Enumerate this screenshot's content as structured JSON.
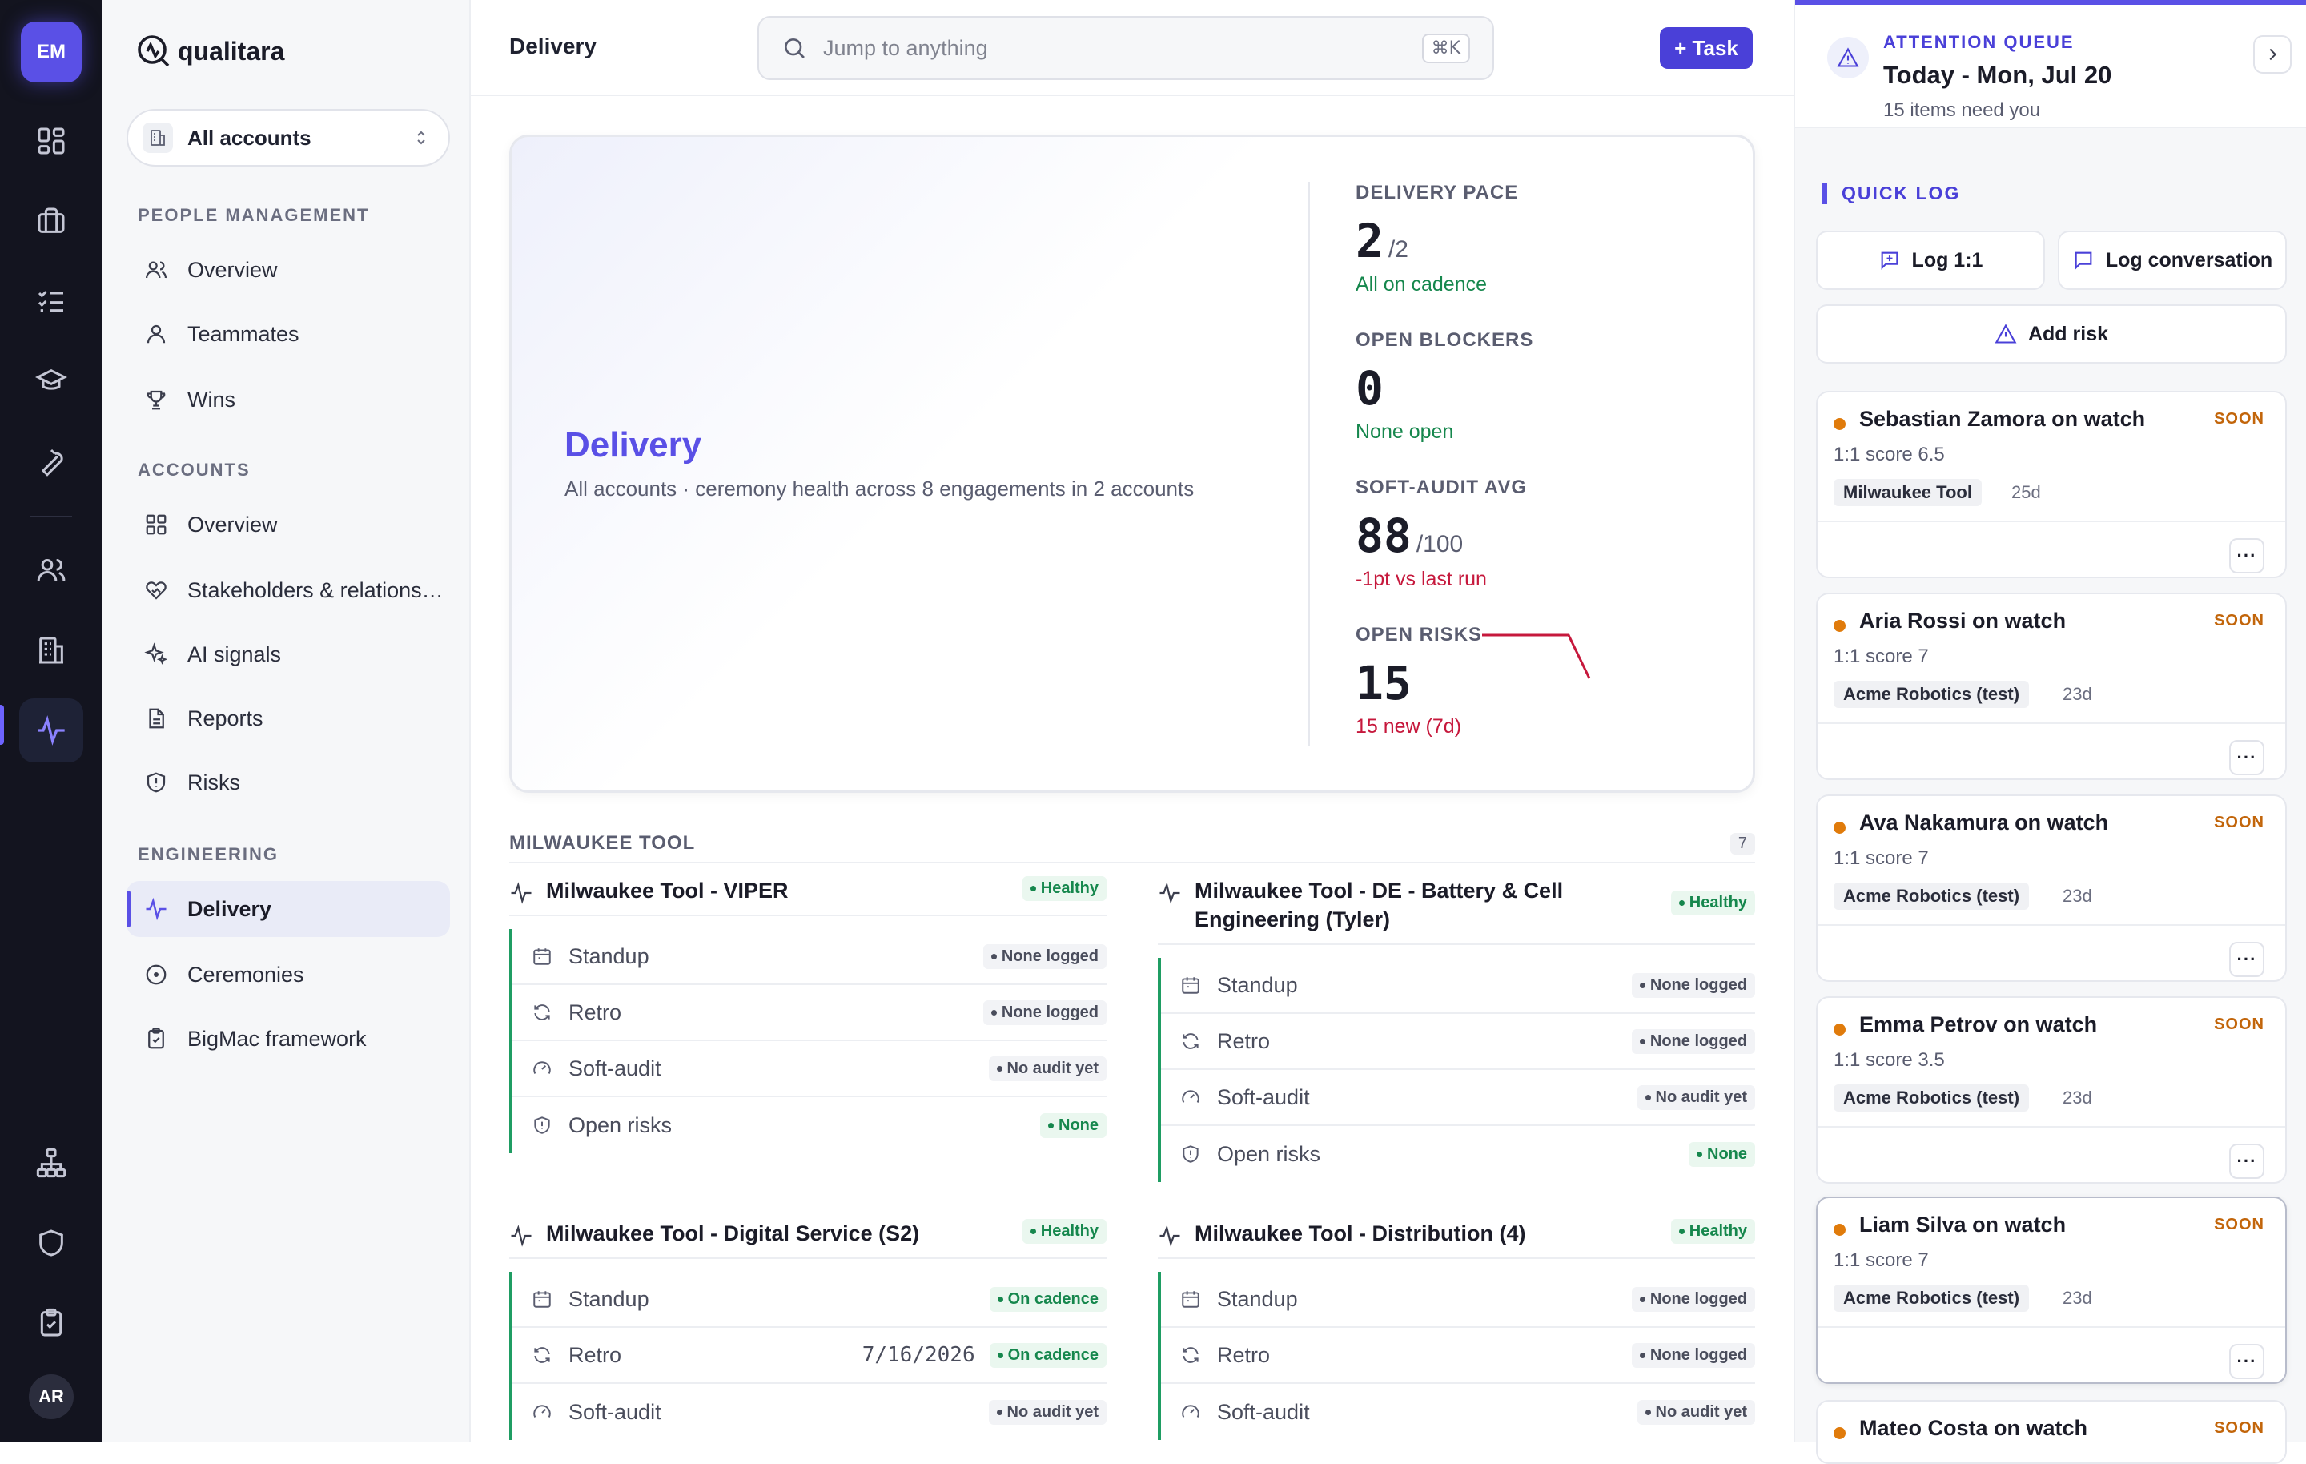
{
  "rail": {
    "avatar": "EM",
    "user": "AR"
  },
  "sidebar": {
    "brand": "qualitara",
    "account_selector": "All accounts",
    "sections": {
      "people": "PEOPLE MANAGEMENT",
      "accounts": "ACCOUNTS",
      "engineering": "ENGINEERING"
    },
    "people_items": [
      "Overview",
      "Teammates",
      "Wins"
    ],
    "account_items": [
      "Overview",
      "Stakeholders & relations…",
      "AI signals",
      "Reports",
      "Risks"
    ],
    "engineering_items": [
      "Delivery",
      "Ceremonies",
      "BigMac framework"
    ]
  },
  "header": {
    "breadcrumb": "Delivery",
    "search_placeholder": "Jump to anything",
    "shortcut": "⌘K",
    "task_button": "+ Task"
  },
  "hero": {
    "title": "Delivery",
    "subtitle": "All accounts · ceremony health across 8 engagements in 2 accounts",
    "kpis": [
      {
        "label": "DELIVERY PACE",
        "value": "2",
        "denominator": "/2",
        "note": "All on cadence",
        "tone": "green"
      },
      {
        "label": "OPEN BLOCKERS",
        "value": "0",
        "denominator": "",
        "note": "None open",
        "tone": "green"
      },
      {
        "label": "SOFT-AUDIT AVG",
        "value": "88",
        "denominator": "/100",
        "note": "-1pt vs last run",
        "tone": "red"
      },
      {
        "label": "OPEN RISKS",
        "value": "15",
        "denominator": "",
        "note": "15 new (7d)",
        "tone": "red"
      }
    ]
  },
  "group": {
    "name": "MILWAUKEE TOOL",
    "count": "7"
  },
  "engagements": [
    {
      "name": "Milwaukee Tool - VIPER",
      "status": "Healthy",
      "rows": [
        {
          "label": "Standup",
          "date": "",
          "badge": "None logged",
          "tone": "gray"
        },
        {
          "label": "Retro",
          "date": "",
          "badge": "None logged",
          "tone": "gray"
        },
        {
          "label": "Soft-audit",
          "date": "",
          "badge": "No audit yet",
          "tone": "gray"
        },
        {
          "label": "Open risks",
          "date": "",
          "badge": "None",
          "tone": "ok"
        }
      ]
    },
    {
      "name": "Milwaukee Tool - DE - Battery & Cell Engineering (Tyler)",
      "status": "Healthy",
      "rows": [
        {
          "label": "Standup",
          "date": "",
          "badge": "None logged",
          "tone": "gray"
        },
        {
          "label": "Retro",
          "date": "",
          "badge": "None logged",
          "tone": "gray"
        },
        {
          "label": "Soft-audit",
          "date": "",
          "badge": "No audit yet",
          "tone": "gray"
        },
        {
          "label": "Open risks",
          "date": "",
          "badge": "None",
          "tone": "ok"
        }
      ]
    },
    {
      "name": "Milwaukee Tool - Digital Service (S2)",
      "status": "Healthy",
      "rows": [
        {
          "label": "Standup",
          "date": "",
          "badge": "On cadence",
          "tone": "ok"
        },
        {
          "label": "Retro",
          "date": "7/16/2026",
          "badge": "On cadence",
          "tone": "ok"
        },
        {
          "label": "Soft-audit",
          "date": "",
          "badge": "No audit yet",
          "tone": "gray"
        }
      ]
    },
    {
      "name": "Milwaukee Tool - Distribution (4)",
      "status": "Healthy",
      "rows": [
        {
          "label": "Standup",
          "date": "",
          "badge": "None logged",
          "tone": "gray"
        },
        {
          "label": "Retro",
          "date": "",
          "badge": "None logged",
          "tone": "gray"
        },
        {
          "label": "Soft-audit",
          "date": "",
          "badge": "No audit yet",
          "tone": "gray"
        }
      ]
    }
  ],
  "attention": {
    "label": "ATTENTION QUEUE",
    "date": "Today - Mon, Jul 20",
    "count": "15 items need you"
  },
  "quick_log": {
    "label": "QUICK LOG",
    "log_1on1": "Log 1:1",
    "log_conversation": "Log conversation",
    "add_risk": "Add risk"
  },
  "queue": [
    {
      "name": "Sebastian Zamora on watch",
      "tag": "SOON",
      "score": "1:1 score 6.5",
      "account": "Milwaukee Tool",
      "age": "25d"
    },
    {
      "name": "Aria Rossi on watch",
      "tag": "SOON",
      "score": "1:1 score 7",
      "account": "Acme Robotics (test)",
      "age": "23d"
    },
    {
      "name": "Ava Nakamura on watch",
      "tag": "SOON",
      "score": "1:1 score 7",
      "account": "Acme Robotics (test)",
      "age": "23d"
    },
    {
      "name": "Emma Petrov on watch",
      "tag": "SOON",
      "score": "1:1 score 3.5",
      "account": "Acme Robotics (test)",
      "age": "23d"
    },
    {
      "name": "Liam Silva on watch",
      "tag": "SOON",
      "score": "1:1 score 7",
      "account": "Acme Robotics (test)",
      "age": "23d"
    },
    {
      "name": "Mateo Costa on watch",
      "tag": "SOON",
      "score": "",
      "account": "",
      "age": ""
    }
  ],
  "colors": {
    "accent": "#5a50e6",
    "healthy": "#16874d",
    "risk": "#c6183c",
    "soon": "#e07b0b"
  }
}
